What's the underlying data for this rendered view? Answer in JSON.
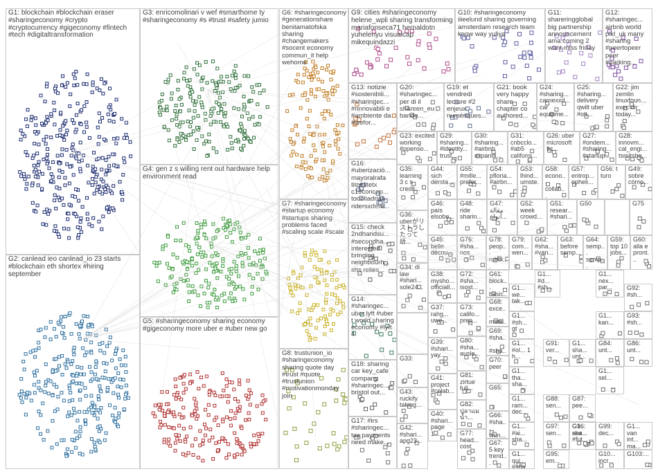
{
  "groups": [
    {
      "id": "G1",
      "label": "G1: blockchain #blockchain eraser #sharingeconomy #crypto #cryptocurrency #gigeconomy #fintech #tech #digitaltransformation",
      "color": "#1a2a6e"
    },
    {
      "id": "G2",
      "label": "G2: canlead ieo canlead_io 23 starts #blockchain eth shortex #hiring september",
      "color": "#2e6f9e"
    },
    {
      "id": "G3",
      "label": "G3: enricomolinari v wef #smarthome ty #sharingeconomy #s #trust #safety jumio",
      "color": "#2f6e3a"
    },
    {
      "id": "G4",
      "label": "G4: gen z s willing rent out hardware help environment read",
      "color": "#3a9a3a"
    },
    {
      "id": "G5",
      "label": "G5: #sharingeconomy sharing economy #gigeconomy more uber e #uber new go",
      "color": "#b03030"
    },
    {
      "id": "G6",
      "label": "G6: #sharingeconomy #generationshare benitamatofska sharing #changemakers #socent economy commun_it help wehome",
      "color": "#c07a20"
    },
    {
      "id": "G7",
      "label": "G7: #sharingeconomy #startup economy #startups sharing problems faced #scaling scale #scale",
      "color": "#c8b020"
    },
    {
      "id": "G8",
      "label": "G8: trustunion_io #sharingeconomy sharing quote day #trust #quote #trustunion #motivationmonday join",
      "color": "#8aa040"
    },
    {
      "id": "G9",
      "label": "G9: cities #sharingeconomy helene_wpli sharing transforming mariafonseca71 hernaldotn yuhelenyu visualcap mikequindazzi",
      "color": "#b04a8a"
    },
    {
      "id": "G10",
      "label": "G10: #sharingeconomy iiieelund sharing governing amsterdam research team know way yuliya",
      "color": "#5a5aa0"
    },
    {
      "id": "G11",
      "label": "G11: shareringglobal big partnership announcement ama coming 2 want miss friday",
      "color": "#a080c0"
    },
    {
      "id": "G12",
      "label": "G12: #sharingec... airbnb world pikl_uk many #sharing #peertopeer peer #parking...",
      "color": "#7a4aa0"
    },
    {
      "id": "G13",
      "label": "G13: notizie #sostenibili... #sharingec... #rinnovabili e #ambiente da #wefor...",
      "color": "#c06a30"
    },
    {
      "id": "G14",
      "label": "G14: #sharingec... uber lyft #uber t world sharing economy #lyft 4",
      "color": "#3a7a5a"
    },
    {
      "id": "G15",
      "label": "G15: check 2ndhandsu... #secondha... interested bringing neighbourh... shs relies...",
      "color": "#606060"
    },
    {
      "id": "G16",
      "label": "G16: #uberizació... mayoralrafa titoelitetx c19concep... todoliadrian ridersxdere...",
      "color": "#506080"
    },
    {
      "id": "G17",
      "label": "G17: #irs #sharingec... tax payments need make...",
      "color": "#707070"
    },
    {
      "id": "G18",
      "label": "G18: sharing car key_cafe company #sharingec... bristol out...",
      "color": "#606060"
    },
    {
      "id": "G19",
      "label": "G19: et vendredi lecture #2 enjeux numériques...",
      "color": "#607090"
    },
    {
      "id": "G20",
      "label": "G20: #sharingec... per di il shareen_eu bando...",
      "color": "#707070"
    },
    {
      "id": "G21",
      "label": "G21: book very happy share chapter co authored...",
      "color": "#707070"
    },
    {
      "id": "G22",
      "label": "G22: jim zemlin linuxfoun... exec dir today...",
      "color": "#707070"
    },
    {
      "id": "G23",
      "label": "G23: excited working #opensо...",
      "color": "#707070"
    },
    {
      "id": "G24",
      "label": "G24: #sharing... carnexxd... car equipme...",
      "color": "#707070"
    },
    {
      "id": "G25",
      "label": "G25: #sharing... delivery qwilt uber #ott...",
      "color": "#707070"
    },
    {
      "id": "G26",
      "label": "G26: uber microsoft ftc...",
      "color": "#707070"
    },
    {
      "id": "G27",
      "label": "G27: #ondem... #sharing... #startup...",
      "color": "#707070"
    },
    {
      "id": "G28",
      "label": "G28: innovm... cal_engi... tsrcitsbe...",
      "color": "#707070"
    },
    {
      "id": "G29",
      "label": "G29: #sharing... #identity... trust...",
      "color": "#707070"
    },
    {
      "id": "G30",
      "label": "G30: #sharing... #airbnb expandi...",
      "color": "#707070"
    },
    {
      "id": "G31",
      "label": "G31: cnbcclo... #ab5 californi...",
      "color": "#707070"
    },
    {
      "id": "G33",
      "label": "G33:",
      "color": "#707070"
    },
    {
      "id": "G34",
      "label": "G34: di law #shari... sole24...",
      "color": "#707070"
    },
    {
      "id": "G35",
      "label": "G35: learning 3 c s credit...",
      "color": "#707070"
    },
    {
      "id": "G36",
      "label": "G36: uberがリ ストラし たって話...",
      "color": "#707070"
    },
    {
      "id": "G37",
      "label": "G37: rahg... uwe...",
      "color": "#707070"
    },
    {
      "id": "G38",
      "label": "G38: mysho... officiall...",
      "color": "#707070"
    },
    {
      "id": "G39",
      "label": "G39: #shari... yay...",
      "color": "#707070"
    },
    {
      "id": "G40",
      "label": "G40: #shari... page 1...",
      "color": "#707070"
    },
    {
      "id": "G41",
      "label": "G41: project #colab...",
      "color": "#707070"
    },
    {
      "id": "G42",
      "label": "G42: #shari... apg23...",
      "color": "#707070"
    },
    {
      "id": "G43",
      "label": "G43: ruckify taking...",
      "color": "#707070"
    },
    {
      "id": "G44",
      "label": "G44: sich dersta...",
      "color": "#707070"
    },
    {
      "id": "G45",
      "label": "G45: belle décou...",
      "color": "#707070"
    },
    {
      "id": "G46",
      "label": "G46: país elsobe...",
      "color": "#707070"
    },
    {
      "id": "G47",
      "label": "G47: مقالة أنواع...",
      "color": "#707070"
    },
    {
      "id": "G48",
      "label": "G48: ride sharin...",
      "color": "#707070"
    },
    {
      "id": "G49",
      "label": "G49: sobre cómo...",
      "color": "#707070"
    },
    {
      "id": "G50",
      "label": "G50",
      "color": "#707070"
    },
    {
      "id": "G51",
      "label": "G51: resear... #shari...",
      "color": "#707070"
    },
    {
      "id": "G52",
      "label": "G52: week crowd...",
      "color": "#707070"
    },
    {
      "id": "G53",
      "label": "G53: lhind... umste...",
      "color": "#707070"
    },
    {
      "id": "G54",
      "label": "G54: pfloria... #airbn...",
      "color": "#707070"
    },
    {
      "id": "G55",
      "label": "G55: #mille... prefer...",
      "color": "#707070"
    },
    {
      "id": "G56",
      "label": "G56: t turo",
      "color": "#707070"
    },
    {
      "id": "G57",
      "label": "G57: entrop... opheli...",
      "color": "#707070"
    },
    {
      "id": "G58",
      "label": "G58: econo... collab...",
      "color": "#707070"
    },
    {
      "id": "G59",
      "label": "G59: top 10 jobs...",
      "color": "#707070"
    },
    {
      "id": "G60",
      "label": "G60: alla e pront...",
      "color": "#707070"
    },
    {
      "id": "G61",
      "label": "G61: block... basic...",
      "color": "#707070"
    },
    {
      "id": "G62",
      "label": "G62: #sha... #van...",
      "color": "#707070"
    },
    {
      "id": "G63",
      "label": "G63: before semp...",
      "color": "#707070"
    },
    {
      "id": "G64",
      "label": "G64: semp... semp...",
      "color": "#707070"
    },
    {
      "id": "G65",
      "label": "G65:",
      "color": "#707070"
    },
    {
      "id": "G66",
      "label": "G66: #sha... wun...",
      "color": "#707070"
    },
    {
      "id": "G67",
      "label": "G67: 5 key trend...",
      "color": "#707070"
    },
    {
      "id": "G68",
      "label": "G68: exce... mate...",
      "color": "#707070"
    },
    {
      "id": "G69",
      "label": "G69: #sha... #sha...",
      "color": "#707070"
    },
    {
      "id": "G70",
      "label": "G70: peer",
      "color": "#707070"
    },
    {
      "id": "G71",
      "label": "G71: #gig gosh...",
      "color": "#707070"
    },
    {
      "id": "G72",
      "label": "G72: #sha... isost...",
      "color": "#707070"
    },
    {
      "id": "G73",
      "label": "G73: califo... prep...",
      "color": "#707070"
    },
    {
      "id": "G75",
      "label": "G75",
      "color": "#707070"
    },
    {
      "id": "G76",
      "label": "G76: #sha... nos",
      "color": "#707070"
    },
    {
      "id": "G77",
      "label": "G77: head... cost",
      "color": "#707070"
    },
    {
      "id": "G78",
      "label": "G78: peop... rubbi...",
      "color": "#707070"
    },
    {
      "id": "G79",
      "label": "G79: com... wen...",
      "color": "#707070"
    },
    {
      "id": "G80",
      "label": "G80: #sha... ausle...",
      "color": "#707070"
    },
    {
      "id": "G81",
      "label": "G81: zirtue full...",
      "color": "#707070"
    },
    {
      "id": "G82",
      "label": "G82: ปลาแม น้ำ...",
      "color": "#707070"
    },
    {
      "id": "G84",
      "label": "G84: unt...",
      "color": "#707070"
    },
    {
      "id": "G86",
      "label": "G86: unt...",
      "color": "#707070"
    },
    {
      "id": "G87",
      "label": "G87: pee...",
      "color": "#707070"
    },
    {
      "id": "G88",
      "label": "G88: sen...",
      "color": "#707070"
    },
    {
      "id": "G91",
      "label": "G91: ver...",
      "color": "#707070"
    },
    {
      "id": "G92",
      "label": "G92: #sh...",
      "color": "#707070"
    },
    {
      "id": "G93",
      "label": "G93: #sh...",
      "color": "#707070"
    },
    {
      "id": "G95",
      "label": "G95: em...",
      "color": "#707070"
    },
    {
      "id": "G96",
      "label": "G96: nex...",
      "color": "#707070"
    },
    {
      "id": "G97",
      "label": "G97: sen...",
      "color": "#707070"
    },
    {
      "id": "G99",
      "label": "G99: dec...",
      "color": "#707070"
    },
    {
      "id": "G103",
      "label": "G103:...",
      "color": "#707070"
    }
  ],
  "small_cells": [
    "G1... #sh... gt",
    "G1... we... tak...",
    "G1... ram... dec...",
    "G1... tha... sha...",
    "G1... #ai... sha...",
    "G1... #d... #sh...",
    "G1... nex... par...",
    "G1... kan...",
    "G1... sha... #fut...",
    "G1... sel...",
    "G1... qui... #sha...",
    "G1... #ol... 1 h...",
    "G1... sha... unt...",
    "G1... van int... ma...",
    "G10... incr..."
  ]
}
